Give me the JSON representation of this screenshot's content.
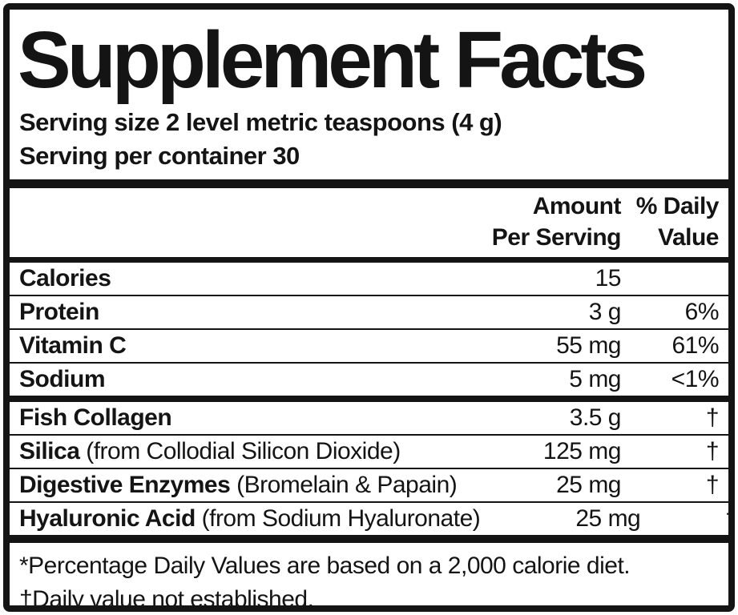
{
  "title": "Supplement Facts",
  "serving": {
    "size": "Serving size 2 level metric teaspoons (4 g)",
    "per_container": "Serving per container 30"
  },
  "header": {
    "amount_line1": "Amount",
    "amount_line2": "Per Serving",
    "dv_line1": "% Daily",
    "dv_line2": "Value"
  },
  "rows": [
    {
      "name": "Calories",
      "detail": "",
      "amount": "15",
      "dv": ""
    },
    {
      "name": "Protein",
      "detail": "",
      "amount": "3 g",
      "dv": "6%"
    },
    {
      "name": "Vitamin C",
      "detail": "",
      "amount": "55 mg",
      "dv": "61%"
    },
    {
      "name": "Sodium",
      "detail": "",
      "amount": "5 mg",
      "dv": "<1%"
    },
    {
      "name": "Fish Collagen",
      "detail": "",
      "amount": "3.5 g",
      "dv": "†"
    },
    {
      "name": "Silica",
      "detail": " (from Collodial Silicon Dioxide)",
      "amount": "125 mg",
      "dv": "†"
    },
    {
      "name": "Digestive Enzymes",
      "detail": " (Bromelain & Papain)",
      "amount": "25 mg",
      "dv": "†"
    },
    {
      "name": "Hyaluronic Acid",
      "detail": " (from Sodium Hyaluronate)",
      "amount": "25 mg",
      "dv": "†"
    }
  ],
  "footnotes": [
    "*Percentage Daily Values are based on a 2,000 calorie diet.",
    "†Daily value not established."
  ],
  "colors": {
    "ink": "#141414",
    "bg": "#ffffff"
  }
}
